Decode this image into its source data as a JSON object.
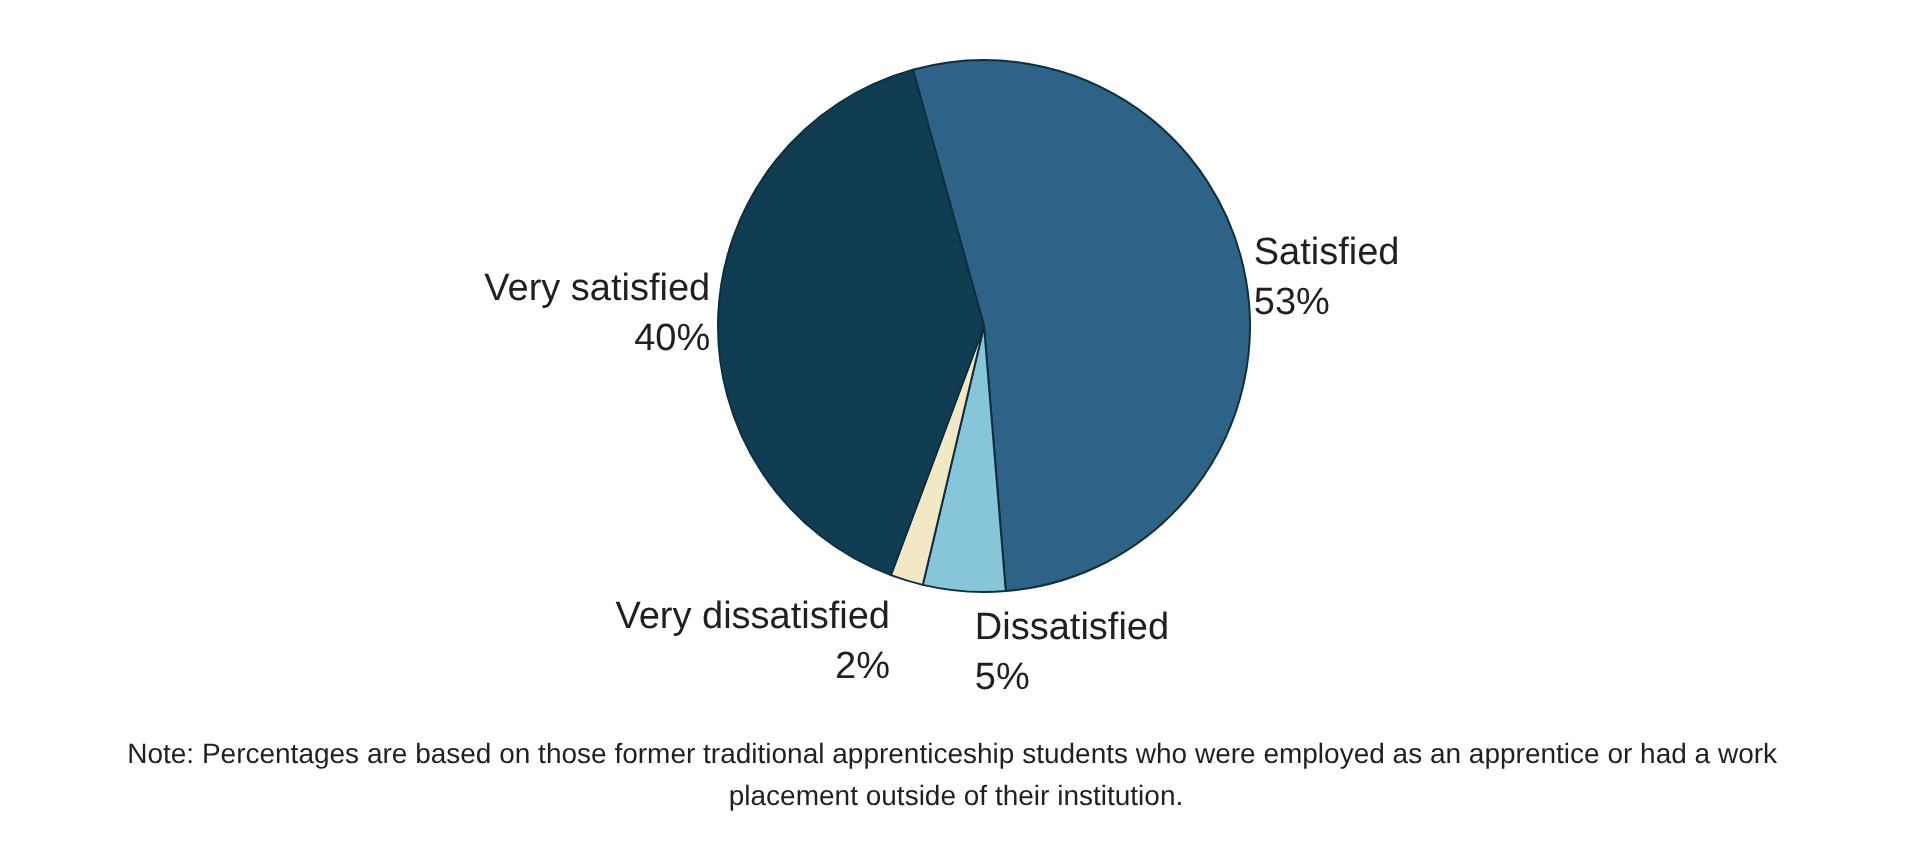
{
  "chart_data": {
    "type": "pie",
    "categories": [
      "Satisfied",
      "Dissatisfied",
      "Very dissatisfied",
      "Very satisfied"
    ],
    "values": [
      53,
      5,
      2,
      40
    ],
    "colors": [
      "#2e6387",
      "#86c6d8",
      "#f2e8c6",
      "#113d52"
    ],
    "value_labels": [
      "53%",
      "5%",
      "2%",
      "40%"
    ],
    "legend": false,
    "annotations": [
      "Note: Percentages are based on those former traditional apprenticeship students who were employed as an apprentice or had a work placement outside of their institution."
    ]
  }
}
